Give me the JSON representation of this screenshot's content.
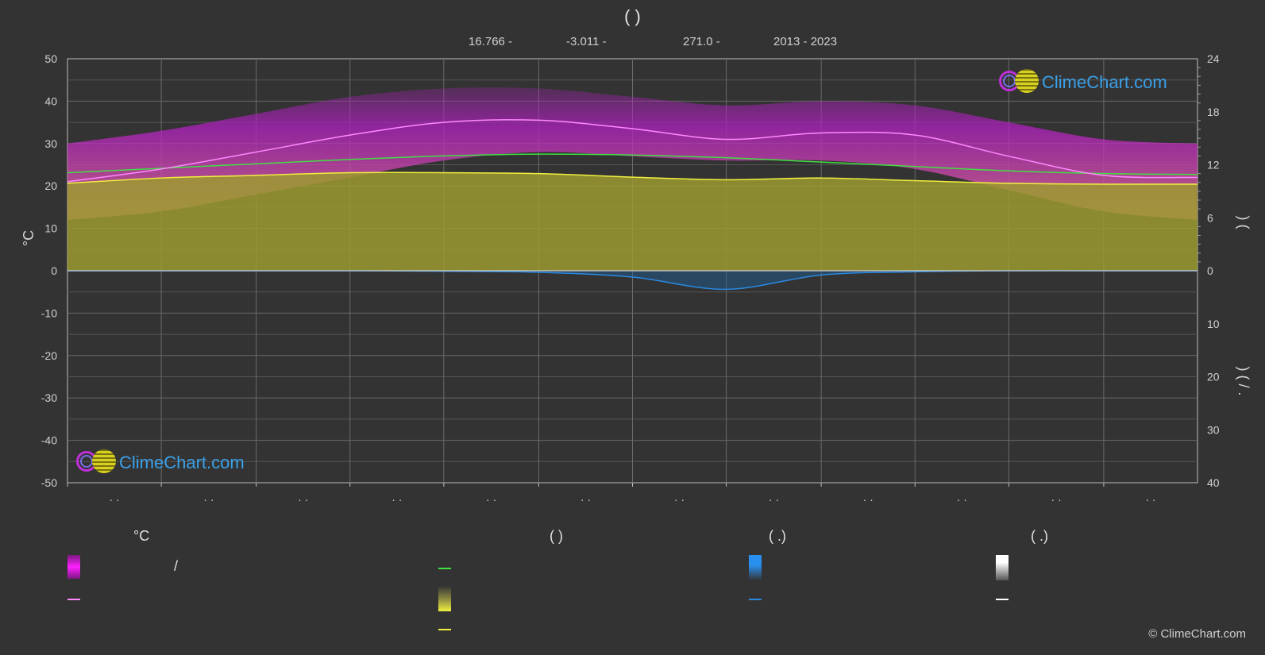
{
  "header": {
    "title": "(          )",
    "coords": [
      "16.766 -",
      "-3.011 -",
      "271.0 -",
      "2013 - 2023"
    ]
  },
  "axes": {
    "left_title": "°C",
    "right_title_upper": ")   (",
    "right_title_lower": ")  ( /  ."
  },
  "logo": {
    "text": "ClimeChart.com"
  },
  "legend": {
    "headers": [
      "°C",
      "(          )",
      "(   .)",
      "(   .)"
    ],
    "slash": "/"
  },
  "copyright": "© ClimeChart.com",
  "colors": {
    "daily_range": "#c020c8",
    "max_line": "#ff88ff",
    "sunshine_fill": "#9c9a30",
    "sunshine_line": "#f0f040",
    "daylight_line": "#40e040",
    "rain": "#2a88e0",
    "snow": "#ffffff"
  },
  "chart_data": {
    "type": "area",
    "y_left": {
      "label": "°C",
      "ylim": [
        -50,
        50
      ],
      "ticks": [
        50,
        40,
        30,
        20,
        10,
        0,
        -10,
        -20,
        -30,
        -40,
        -50
      ]
    },
    "y_right_upper": {
      "ylim": [
        0,
        24
      ],
      "ticks": [
        24,
        18,
        12,
        6,
        0
      ]
    },
    "y_right_lower": {
      "ylim": [
        0,
        40
      ],
      "ticks": [
        0,
        10,
        20,
        30,
        40
      ]
    },
    "month_labels": [
      "· ·",
      "· ·",
      "· ·",
      "· ·",
      "· ·",
      "· ·",
      "· ·",
      "· ·",
      "· ·",
      "· ·",
      "· ·",
      "· ·"
    ],
    "x_month_fraction": [
      0,
      0.083,
      0.167,
      0.25,
      0.333,
      0.417,
      0.5,
      0.583,
      0.667,
      0.75,
      0.833,
      0.917,
      1.0
    ],
    "series": [
      {
        "key": "daylight_hours",
        "axis": "right_upper",
        "values": [
          11.1,
          11.6,
          12.1,
          12.6,
          13.0,
          13.2,
          13.1,
          12.8,
          12.3,
          11.8,
          11.3,
          11.0,
          10.9
        ]
      },
      {
        "key": "sunshine_hours",
        "axis": "right_upper",
        "values": [
          9.9,
          10.5,
          10.8,
          11.1,
          11.1,
          11.0,
          10.6,
          10.3,
          10.5,
          10.2,
          9.9,
          9.8,
          9.8
        ]
      },
      {
        "key": "max_temp_avg",
        "axis": "left",
        "values": [
          21.0,
          24.0,
          28.0,
          32.0,
          35.0,
          35.5,
          33.5,
          31.0,
          32.5,
          32.0,
          27.0,
          22.5,
          22.0
        ]
      },
      {
        "key": "daily_range_high",
        "axis": "left",
        "values": [
          30,
          33,
          37,
          41,
          43,
          43,
          41,
          39,
          40,
          39,
          35,
          31,
          30
        ]
      },
      {
        "key": "daily_range_low",
        "axis": "left",
        "values": [
          12,
          14,
          18,
          22,
          26,
          28,
          27,
          26,
          26,
          24,
          19,
          14,
          12
        ]
      },
      {
        "key": "precipitation_mm",
        "axis": "right_lower",
        "values": [
          0,
          0,
          0,
          0,
          0.1,
          0.3,
          1.2,
          3.5,
          0.8,
          0.2,
          0,
          0,
          0
        ]
      }
    ]
  }
}
